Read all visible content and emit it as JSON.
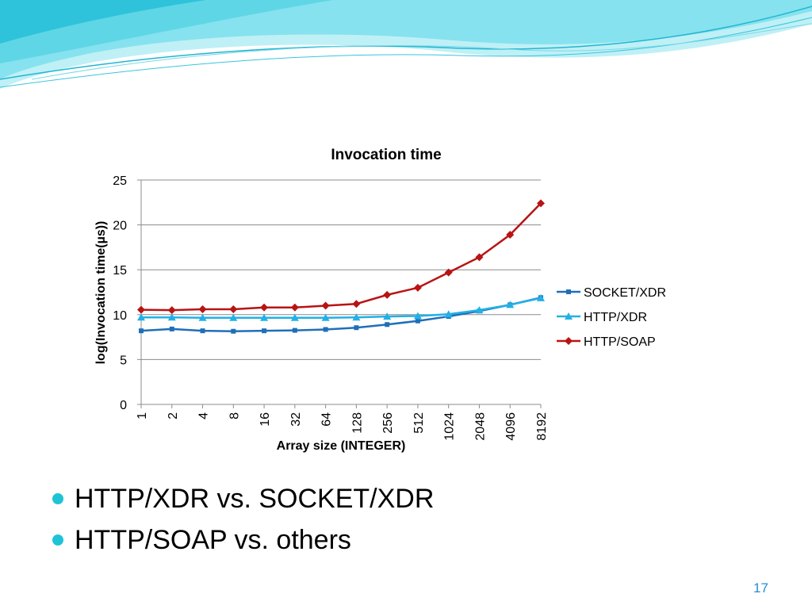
{
  "slide": {
    "bullets": [
      "HTTP/XDR vs. SOCKET/XDR",
      "HTTP/SOAP vs. others"
    ],
    "page_number": "17",
    "colors": {
      "banner_light": "#bff0f6",
      "banner_mid": "#5fd6e6",
      "banner_dark": "#1fb6d2",
      "bullet": "#1ec4d6",
      "page_number": "#1f8fd6"
    }
  },
  "chart_data": {
    "type": "line",
    "title": "Invocation time",
    "xlabel": "Array size (INTEGER)",
    "ylabel": "log(Invocation time(µs))",
    "categories": [
      "1",
      "2",
      "4",
      "8",
      "16",
      "32",
      "64",
      "128",
      "256",
      "512",
      "1024",
      "2048",
      "4096",
      "8192"
    ],
    "ylim": [
      0,
      25
    ],
    "yticks": [
      0,
      5,
      10,
      15,
      20,
      25
    ],
    "grid": "horizontal",
    "legend_position": "right",
    "series": [
      {
        "name": "SOCKET/XDR",
        "color": "#1f6fb8",
        "marker": "square",
        "values": [
          8.2,
          8.4,
          8.2,
          8.15,
          8.2,
          8.25,
          8.35,
          8.55,
          8.9,
          9.3,
          9.8,
          10.4,
          11.1,
          11.9
        ]
      },
      {
        "name": "HTTP/XDR",
        "color": "#22b0e6",
        "marker": "triangle",
        "values": [
          9.7,
          9.7,
          9.65,
          9.65,
          9.65,
          9.65,
          9.65,
          9.7,
          9.8,
          9.85,
          10.05,
          10.5,
          11.1,
          11.85
        ]
      },
      {
        "name": "HTTP/SOAP",
        "color": "#b81414",
        "marker": "diamond",
        "values": [
          10.55,
          10.5,
          10.6,
          10.6,
          10.8,
          10.8,
          11.0,
          11.2,
          12.2,
          13.0,
          14.7,
          16.4,
          18.9,
          22.4
        ]
      }
    ]
  }
}
